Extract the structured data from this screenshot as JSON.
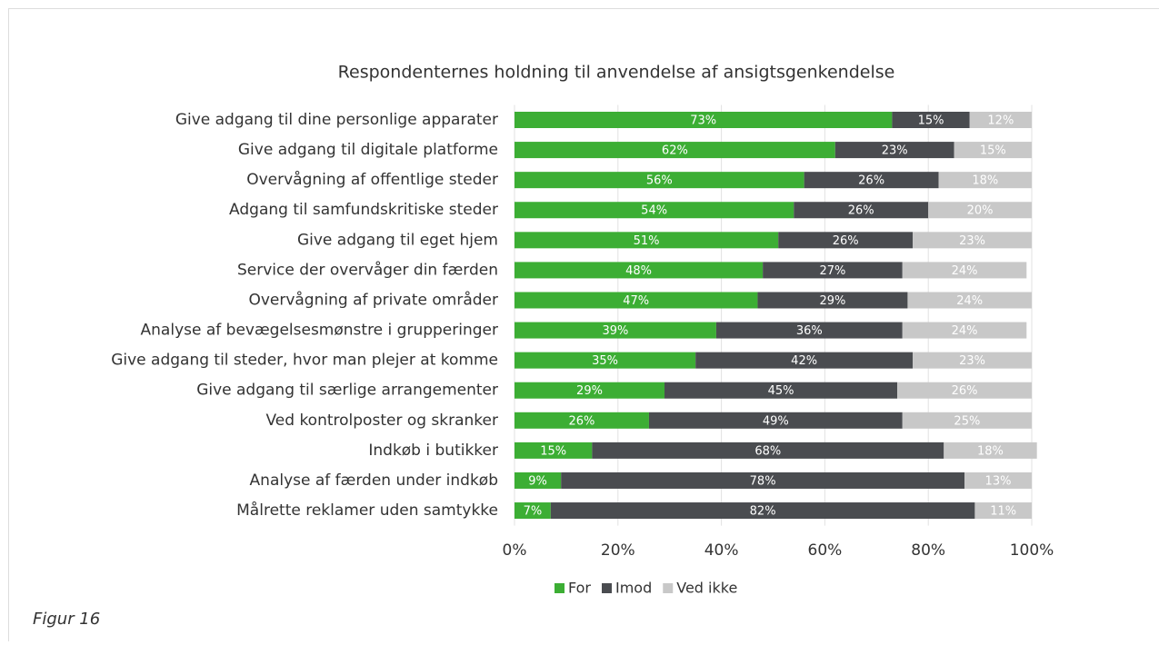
{
  "chart_data": {
    "type": "stacked_bar_horizontal",
    "title": "Respondenternes holdning til anvendelse af ansigtsgenkendelse",
    "caption": "Figur 16",
    "categories": [
      "Give adgang til dine personlige apparater",
      "Give adgang til digitale platforme",
      "Overvågning af offentlige steder",
      "Adgang til samfundskritiske steder",
      "Give adgang til eget hjem",
      "Service der overvåger din færden",
      "Overvågning af private områder",
      "Analyse af bevægelsesmønstre i grupperinger",
      "Give adgang til steder, hvor man plejer at komme",
      "Give adgang til særlige arrangementer",
      "Ved kontrolposter og skranker",
      "Indkøb i butikker",
      "Analyse af færden under indkøb",
      "Målrette reklamer uden samtykke"
    ],
    "series": [
      {
        "name": "For",
        "color": "#3cae34",
        "values": [
          73,
          62,
          56,
          54,
          51,
          48,
          47,
          39,
          35,
          29,
          26,
          15,
          9,
          7
        ],
        "value_labels": [
          "73%",
          "62%",
          "56%",
          "54%",
          "51%",
          "48%",
          "47%",
          "39%",
          "35%",
          "29%",
          "26%",
          "15%",
          "9%",
          "7%"
        ]
      },
      {
        "name": "Imod",
        "color": "#4a4c50",
        "values": [
          15,
          23,
          26,
          26,
          26,
          27,
          29,
          36,
          42,
          45,
          49,
          68,
          78,
          82
        ],
        "value_labels": [
          "15%",
          "23%",
          "26%",
          "26%",
          "26%",
          "27%",
          "29%",
          "36%",
          "42%",
          "45%",
          "49%",
          "68%",
          "78%",
          "82%"
        ]
      },
      {
        "name": "Ved ikke",
        "color": "#c8c8c8",
        "values": [
          12,
          15,
          18,
          20,
          23,
          24,
          24,
          24,
          23,
          26,
          25,
          18,
          13,
          11
        ],
        "value_labels": [
          "12%",
          "15%",
          "18%",
          "20%",
          "23%",
          "24%",
          "24%",
          "24%",
          "23%",
          "26%",
          "25%",
          "18%",
          "13%",
          "11%"
        ]
      }
    ],
    "xlim": [
      0,
      100
    ],
    "xticks": [
      {
        "value": 0,
        "label": "0%"
      },
      {
        "value": 20,
        "label": "20%"
      },
      {
        "value": 40,
        "label": "40%"
      },
      {
        "value": 60,
        "label": "60%"
      },
      {
        "value": 80,
        "label": "80%"
      },
      {
        "value": 100,
        "label": "100%"
      }
    ],
    "grid": true,
    "legend": "bottom"
  }
}
